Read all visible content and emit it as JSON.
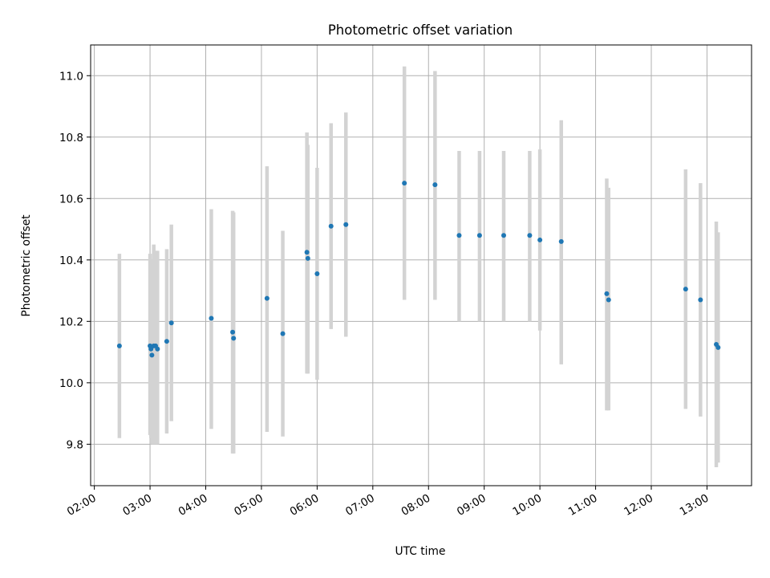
{
  "chart_data": {
    "type": "scatter",
    "title": "Photometric offset variation",
    "xlabel": "UTC time",
    "ylabel": "Photometric offset",
    "xlim": [
      "01:56",
      "13:48"
    ],
    "ylim": [
      9.665,
      11.1
    ],
    "x_ticks": [
      "02:00",
      "03:00",
      "04:00",
      "05:00",
      "06:00",
      "07:00",
      "08:00",
      "09:00",
      "10:00",
      "11:00",
      "12:00",
      "13:00"
    ],
    "y_ticks": [
      "9.8",
      "10.0",
      "10.2",
      "10.4",
      "10.6",
      "10.8",
      "11.0"
    ],
    "grid": true,
    "colors": {
      "point": "#1f77b4",
      "errorbar": "#d3d3d3",
      "grid": "#b0b0b0"
    },
    "series": [
      {
        "points": [
          {
            "x": "02:27",
            "y": 10.12,
            "low": 9.82,
            "high": 10.42
          },
          {
            "x": "03:00",
            "y": 10.12,
            "low": 9.83,
            "high": 10.42
          },
          {
            "x": "03:01",
            "y": 10.11,
            "low": 9.82,
            "high": 10.4
          },
          {
            "x": "03:02",
            "y": 10.09,
            "low": 9.8,
            "high": 10.38
          },
          {
            "x": "03:04",
            "y": 10.12,
            "low": 9.8,
            "high": 10.45
          },
          {
            "x": "03:06",
            "y": 10.12,
            "low": 9.8,
            "high": 10.43
          },
          {
            "x": "03:08",
            "y": 10.11,
            "low": 9.8,
            "high": 10.43
          },
          {
            "x": "03:18",
            "y": 10.135,
            "low": 9.835,
            "high": 10.435
          },
          {
            "x": "03:23",
            "y": 10.195,
            "low": 9.875,
            "high": 10.515
          },
          {
            "x": "04:06",
            "y": 10.21,
            "low": 9.85,
            "high": 10.565
          },
          {
            "x": "04:29",
            "y": 10.165,
            "low": 9.77,
            "high": 10.56
          },
          {
            "x": "04:30",
            "y": 10.145,
            "low": 9.77,
            "high": 10.555
          },
          {
            "x": "05:06",
            "y": 10.275,
            "low": 9.84,
            "high": 10.705
          },
          {
            "x": "05:23",
            "y": 10.16,
            "low": 9.825,
            "high": 10.495
          },
          {
            "x": "05:49",
            "y": 10.425,
            "low": 10.03,
            "high": 10.815
          },
          {
            "x": "05:50",
            "y": 10.405,
            "low": 10.03,
            "high": 10.775
          },
          {
            "x": "06:00",
            "y": 10.355,
            "low": 10.01,
            "high": 10.7
          },
          {
            "x": "06:15",
            "y": 10.51,
            "low": 10.175,
            "high": 10.845
          },
          {
            "x": "06:31",
            "y": 10.515,
            "low": 10.15,
            "high": 10.88
          },
          {
            "x": "07:34",
            "y": 10.65,
            "low": 10.27,
            "high": 11.03
          },
          {
            "x": "08:07",
            "y": 10.645,
            "low": 10.27,
            "high": 11.015
          },
          {
            "x": "08:33",
            "y": 10.48,
            "low": 10.2,
            "high": 10.755
          },
          {
            "x": "08:55",
            "y": 10.48,
            "low": 10.2,
            "high": 10.755
          },
          {
            "x": "09:21",
            "y": 10.48,
            "low": 10.2,
            "high": 10.755
          },
          {
            "x": "09:49",
            "y": 10.48,
            "low": 10.2,
            "high": 10.755
          },
          {
            "x": "10:00",
            "y": 10.465,
            "low": 10.17,
            "high": 10.76
          },
          {
            "x": "10:23",
            "y": 10.46,
            "low": 10.06,
            "high": 10.855
          },
          {
            "x": "11:12",
            "y": 10.29,
            "low": 9.91,
            "high": 10.665
          },
          {
            "x": "11:14",
            "y": 10.27,
            "low": 9.91,
            "high": 10.635
          },
          {
            "x": "12:37",
            "y": 10.305,
            "low": 9.915,
            "high": 10.695
          },
          {
            "x": "12:53",
            "y": 10.27,
            "low": 9.89,
            "high": 10.65
          },
          {
            "x": "13:10",
            "y": 10.125,
            "low": 9.725,
            "high": 10.525
          },
          {
            "x": "13:12",
            "y": 10.115,
            "low": 9.74,
            "high": 10.49
          }
        ]
      }
    ]
  }
}
